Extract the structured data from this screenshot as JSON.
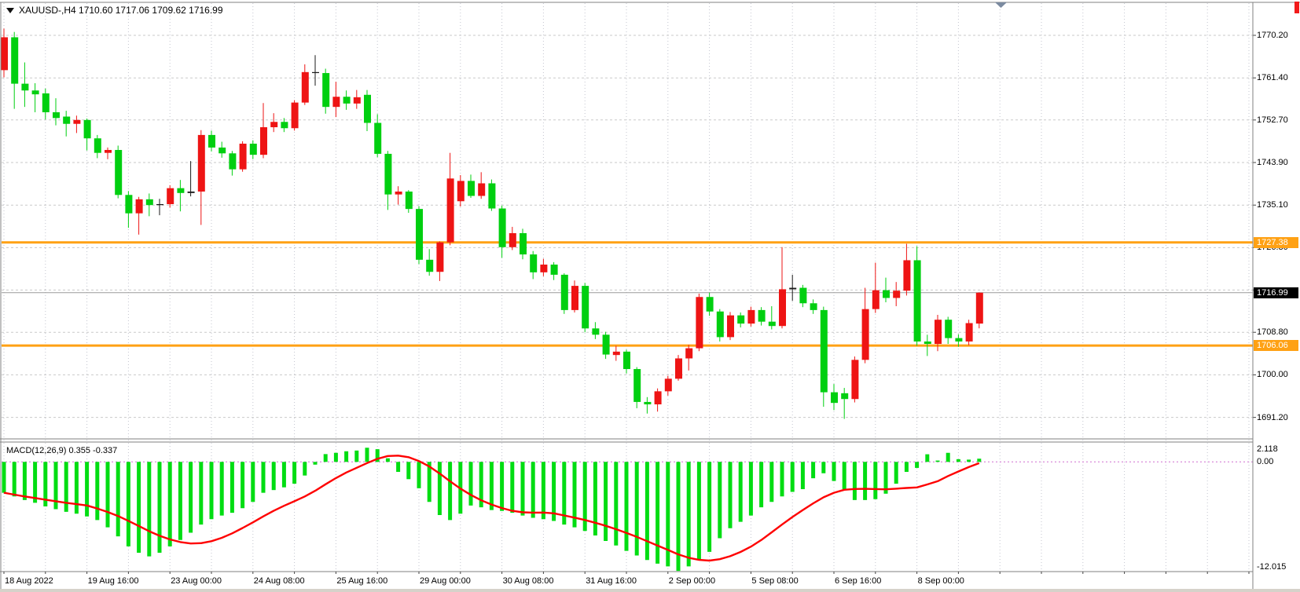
{
  "title": {
    "text": "XAUUSD-,H4  1710.60 1717.06 1709.62 1716.99",
    "symbol": "XAUUSD-",
    "period": "H4",
    "open": "1710.60",
    "high": "1717.06",
    "low": "1709.62",
    "close": "1716.99"
  },
  "macd_panel": {
    "label": "MACD(12,26,9) 0.355 -0.337",
    "main_value": "0.355",
    "signal_value": "-0.337",
    "scale": {
      "top": "2.118",
      "zero": "0.00",
      "bottom": "-12.015"
    }
  },
  "colors": {
    "bull": "#ee1414",
    "bear": "#00cf10",
    "doji": "#1a1a1a",
    "macd_bar": "#00dd12",
    "signal_line": "#fe0000",
    "hline_orange": "#ffa114",
    "badge_black_bg": "#000000",
    "badge_text": "#ffffff",
    "grid_h": "#c9c9c9",
    "grid_v": "#c3c5cf",
    "zero_line": "#d06fd0",
    "border": "#828282",
    "current_price_line": "#9a9a9a",
    "marker_gray": "#7b8aa0"
  },
  "price_axis": {
    "ticks": [
      {
        "value": 1770.2,
        "label": "1770.20"
      },
      {
        "value": 1761.4,
        "label": "1761.40"
      },
      {
        "value": 1752.7,
        "label": "1752.70"
      },
      {
        "value": 1743.9,
        "label": "1743.90"
      },
      {
        "value": 1735.1,
        "label": "1735.10"
      },
      {
        "value": 1726.3,
        "label": "1726.30"
      },
      {
        "value": 1717.55,
        "label": ""
      },
      {
        "value": 1708.8,
        "label": "1708.80"
      },
      {
        "value": 1700.0,
        "label": "1700.00"
      },
      {
        "value": 1691.2,
        "label": "1691.20"
      }
    ],
    "current": {
      "value": 1716.99,
      "label": "1716.99"
    },
    "hlines": [
      {
        "value": 1727.38,
        "label": "1727.38"
      },
      {
        "value": 1706.06,
        "label": "1706.06"
      }
    ]
  },
  "time_axis": {
    "labels": [
      "18 Aug 2022",
      "19 Aug 16:00",
      "23 Aug 00:00",
      "24 Aug 08:00",
      "25 Aug 16:00",
      "29 Aug 00:00",
      "30 Aug 08:00",
      "31 Aug 16:00",
      "2 Sep 00:00",
      "5 Sep 08:00",
      "6 Sep 16:00",
      "8 Sep 00:00"
    ],
    "label_every_n_candles": 8
  },
  "chart_data": {
    "type": "candlestick",
    "title": "XAUUSD- H4",
    "ylim": [
      1686.5,
      1773.5
    ],
    "grid": true,
    "candles": [
      [
        1763.0,
        1771.6,
        1761.5,
        1769.8
      ],
      [
        1769.8,
        1770.9,
        1755.0,
        1760.2
      ],
      [
        1760.2,
        1764.6,
        1755.4,
        1758.8
      ],
      [
        1758.8,
        1760.3,
        1754.3,
        1758.0
      ],
      [
        1758.2,
        1759.2,
        1752.8,
        1754.3
      ],
      [
        1754.3,
        1757.2,
        1751.6,
        1753.1
      ],
      [
        1753.4,
        1754.6,
        1749.3,
        1751.9
      ],
      [
        1751.9,
        1753.6,
        1750.0,
        1752.7
      ],
      [
        1752.7,
        1753.0,
        1746.4,
        1748.9
      ],
      [
        1748.9,
        1749.6,
        1744.8,
        1745.9
      ],
      [
        1745.9,
        1747.0,
        1744.6,
        1746.5
      ],
      [
        1746.5,
        1747.4,
        1736.5,
        1737.2
      ],
      [
        1737.2,
        1738.0,
        1730.4,
        1733.4
      ],
      [
        1733.4,
        1736.8,
        1729.0,
        1736.3
      ],
      [
        1736.3,
        1737.5,
        1732.8,
        1735.1
      ],
      [
        1735.1,
        1736.4,
        1733.0,
        1735.3
      ],
      [
        1735.3,
        1739.2,
        1734.6,
        1738.6
      ],
      [
        1738.6,
        1740.3,
        1733.8,
        1737.6
      ],
      [
        1737.6,
        1744.2,
        1736.9,
        1737.9
      ],
      [
        1737.9,
        1750.6,
        1731.0,
        1749.6
      ],
      [
        1749.6,
        1750.5,
        1746.2,
        1747.0
      ],
      [
        1747.0,
        1748.2,
        1744.9,
        1745.8
      ],
      [
        1745.8,
        1746.3,
        1741.2,
        1742.5
      ],
      [
        1742.5,
        1748.3,
        1742.0,
        1747.8
      ],
      [
        1747.8,
        1748.5,
        1744.6,
        1745.5
      ],
      [
        1745.5,
        1756.2,
        1744.8,
        1751.2
      ],
      [
        1751.2,
        1754.1,
        1750.2,
        1752.3
      ],
      [
        1752.3,
        1753.1,
        1750.2,
        1751.0
      ],
      [
        1751.0,
        1756.8,
        1750.5,
        1756.3
      ],
      [
        1756.3,
        1764.2,
        1755.8,
        1762.6
      ],
      [
        1762.6,
        1766.1,
        1759.8,
        1762.4
      ],
      [
        1762.4,
        1763.3,
        1754.0,
        1755.4
      ],
      [
        1755.4,
        1760.6,
        1753.3,
        1757.5
      ],
      [
        1757.5,
        1758.8,
        1754.8,
        1756.1
      ],
      [
        1756.1,
        1758.9,
        1755.0,
        1757.4
      ],
      [
        1757.9,
        1758.9,
        1750.4,
        1752.1
      ],
      [
        1752.1,
        1753.9,
        1745.0,
        1745.7
      ],
      [
        1745.7,
        1746.3,
        1734.1,
        1737.3
      ],
      [
        1737.3,
        1739.0,
        1735.2,
        1737.9
      ],
      [
        1737.9,
        1738.2,
        1733.5,
        1734.3
      ],
      [
        1734.3,
        1734.9,
        1722.9,
        1723.8
      ],
      [
        1723.8,
        1726.0,
        1720.5,
        1721.3
      ],
      [
        1721.3,
        1727.6,
        1719.4,
        1727.4
      ],
      [
        1727.4,
        1745.9,
        1726.8,
        1740.6
      ],
      [
        1735.9,
        1741.3,
        1734.8,
        1740.1
      ],
      [
        1740.1,
        1741.4,
        1736.6,
        1737.0
      ],
      [
        1737.0,
        1741.9,
        1736.4,
        1739.6
      ],
      [
        1739.6,
        1740.4,
        1733.9,
        1734.4
      ],
      [
        1734.4,
        1735.0,
        1724.2,
        1726.4
      ],
      [
        1726.4,
        1730.6,
        1725.8,
        1729.3
      ],
      [
        1729.3,
        1730.2,
        1723.9,
        1724.9
      ],
      [
        1724.9,
        1725.6,
        1719.8,
        1721.2
      ],
      [
        1721.2,
        1724.0,
        1720.4,
        1722.8
      ],
      [
        1722.8,
        1723.3,
        1719.6,
        1720.7
      ],
      [
        1720.7,
        1721.0,
        1712.6,
        1713.4
      ],
      [
        1713.4,
        1719.5,
        1712.9,
        1718.4
      ],
      [
        1718.4,
        1719.0,
        1708.8,
        1709.6
      ],
      [
        1709.6,
        1710.9,
        1707.4,
        1708.3
      ],
      [
        1708.3,
        1708.9,
        1703.3,
        1704.2
      ],
      [
        1704.1,
        1706.0,
        1702.9,
        1704.8
      ],
      [
        1704.8,
        1705.2,
        1700.3,
        1701.2
      ],
      [
        1701.2,
        1701.6,
        1693.1,
        1694.4
      ],
      [
        1694.4,
        1695.4,
        1692.0,
        1693.9
      ],
      [
        1693.9,
        1697.2,
        1692.4,
        1696.6
      ],
      [
        1696.6,
        1699.8,
        1695.7,
        1699.2
      ],
      [
        1699.2,
        1704.1,
        1698.8,
        1703.4
      ],
      [
        1703.4,
        1706.2,
        1700.9,
        1705.5
      ],
      [
        1705.5,
        1716.8,
        1704.9,
        1716.1
      ],
      [
        1716.1,
        1717.0,
        1712.2,
        1713.1
      ],
      [
        1713.1,
        1713.6,
        1706.9,
        1707.8
      ],
      [
        1707.8,
        1713.0,
        1707.2,
        1712.3
      ],
      [
        1712.3,
        1712.9,
        1709.8,
        1710.6
      ],
      [
        1710.6,
        1714.1,
        1710.0,
        1713.4
      ],
      [
        1713.4,
        1714.0,
        1710.2,
        1711.0
      ],
      [
        1711.0,
        1714.2,
        1709.4,
        1710.1
      ],
      [
        1710.1,
        1726.4,
        1709.6,
        1717.7
      ],
      [
        1717.7,
        1720.7,
        1715.3,
        1718.0
      ],
      [
        1718.0,
        1718.6,
        1714.0,
        1714.8
      ],
      [
        1714.8,
        1715.6,
        1712.6,
        1713.4
      ],
      [
        1713.4,
        1714.1,
        1693.4,
        1696.4
      ],
      [
        1696.4,
        1698.1,
        1692.7,
        1694.2
      ],
      [
        1696.2,
        1697.3,
        1690.9,
        1695.0
      ],
      [
        1695.0,
        1703.8,
        1694.3,
        1703.1
      ],
      [
        1703.1,
        1718.0,
        1702.4,
        1713.6
      ],
      [
        1713.6,
        1723.2,
        1712.8,
        1717.5
      ],
      [
        1717.5,
        1720.1,
        1715.0,
        1715.9
      ],
      [
        1715.9,
        1719.2,
        1714.2,
        1717.4
      ],
      [
        1717.4,
        1727.1,
        1716.4,
        1723.7
      ],
      [
        1723.7,
        1726.6,
        1706.0,
        1706.9
      ],
      [
        1706.9,
        1708.3,
        1703.9,
        1706.4
      ],
      [
        1706.4,
        1712.4,
        1704.9,
        1711.4
      ],
      [
        1711.4,
        1712.0,
        1706.4,
        1707.6
      ],
      [
        1707.6,
        1708.4,
        1705.8,
        1706.9
      ],
      [
        1706.9,
        1711.4,
        1706.1,
        1710.7
      ],
      [
        1710.6,
        1717.06,
        1709.62,
        1716.99
      ]
    ],
    "indicator": {
      "type": "macd_histogram",
      "params": "12,26,9",
      "ylim": [
        -12.015,
        2.118
      ],
      "histogram": [
        -3.4,
        -3.8,
        -4.2,
        -4.5,
        -4.9,
        -5.2,
        -5.5,
        -5.7,
        -6.0,
        -6.4,
        -7.2,
        -8.2,
        -9.3,
        -10.0,
        -10.4,
        -10.0,
        -9.3,
        -8.6,
        -7.8,
        -6.9,
        -6.3,
        -5.9,
        -5.6,
        -5.1,
        -4.4,
        -3.4,
        -3.1,
        -2.8,
        -2.4,
        -1.5,
        -0.3,
        0.86,
        1.0,
        1.17,
        1.25,
        1.56,
        1.4,
        0.4,
        -1.1,
        -1.9,
        -2.9,
        -4.4,
        -5.85,
        -6.4,
        -5.7,
        -4.8,
        -5.0,
        -5.3,
        -5.4,
        -5.6,
        -5.9,
        -6.15,
        -6.3,
        -6.5,
        -6.9,
        -7.2,
        -7.6,
        -8.1,
        -8.7,
        -9.2,
        -9.8,
        -10.3,
        -10.8,
        -11.2,
        -11.5,
        -12.0,
        -11.5,
        -10.8,
        -9.9,
        -8.4,
        -7.3,
        -6.6,
        -5.9,
        -5.0,
        -4.4,
        -3.8,
        -3.3,
        -3.0,
        -1.8,
        -1.25,
        -2.1,
        -3.0,
        -4.2,
        -4.2,
        -4.1,
        -3.5,
        -2.4,
        -1.1,
        -0.66,
        0.84,
        0.15,
        1.0,
        0.3,
        0.25,
        0.355
      ],
      "last_main": 0.355,
      "last_signal": -0.337
    }
  }
}
